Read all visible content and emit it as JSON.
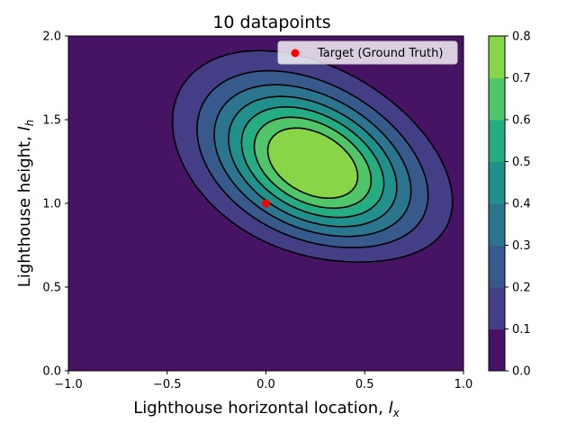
{
  "chart_data": {
    "type": "heatmap",
    "title": "10 datapoints",
    "xlabel_text": "Lighthouse horizontal location, ",
    "xlabel_symbol": "l",
    "xlabel_sub": "x",
    "ylabel_text": "Lighthouse height, ",
    "ylabel_symbol": "l",
    "ylabel_sub": "h",
    "xlim": [
      -1.0,
      1.0
    ],
    "ylim": [
      0.0,
      2.0
    ],
    "x_ticks": [
      -1.0,
      -0.5,
      0.0,
      0.5,
      1.0
    ],
    "x_tick_labels": [
      "−1.0",
      "−0.5",
      "0.0",
      "0.5",
      "1.0"
    ],
    "y_ticks": [
      0.0,
      0.5,
      1.0,
      1.5,
      2.0
    ],
    "y_tick_labels": [
      "0.0",
      "0.5",
      "1.0",
      "1.5",
      "2.0"
    ],
    "contour_levels": [
      0.0,
      0.1,
      0.2,
      0.3,
      0.4,
      0.5,
      0.6,
      0.7,
      0.8
    ],
    "level_colors": [
      "#471365",
      "#433e85",
      "#38598c",
      "#2b758e",
      "#21908d",
      "#26ac82",
      "#51c569",
      "#89d548"
    ],
    "colorbar_ticks": [
      0.0,
      0.1,
      0.2,
      0.3,
      0.4,
      0.5,
      0.6,
      0.7,
      0.8
    ],
    "colorbar_tick_labels": [
      "0.0",
      "0.1",
      "0.2",
      "0.3",
      "0.4",
      "0.5",
      "0.6",
      "0.7",
      "0.8"
    ],
    "peak": {
      "x": 0.3,
      "y": 1.08,
      "value": 0.77
    },
    "target_point": {
      "x": 0.0,
      "y": 1.0,
      "color": "#ff0000"
    },
    "legend": {
      "label": "Target (Ground Truth)",
      "placement": "top-right"
    },
    "grid": false
  }
}
